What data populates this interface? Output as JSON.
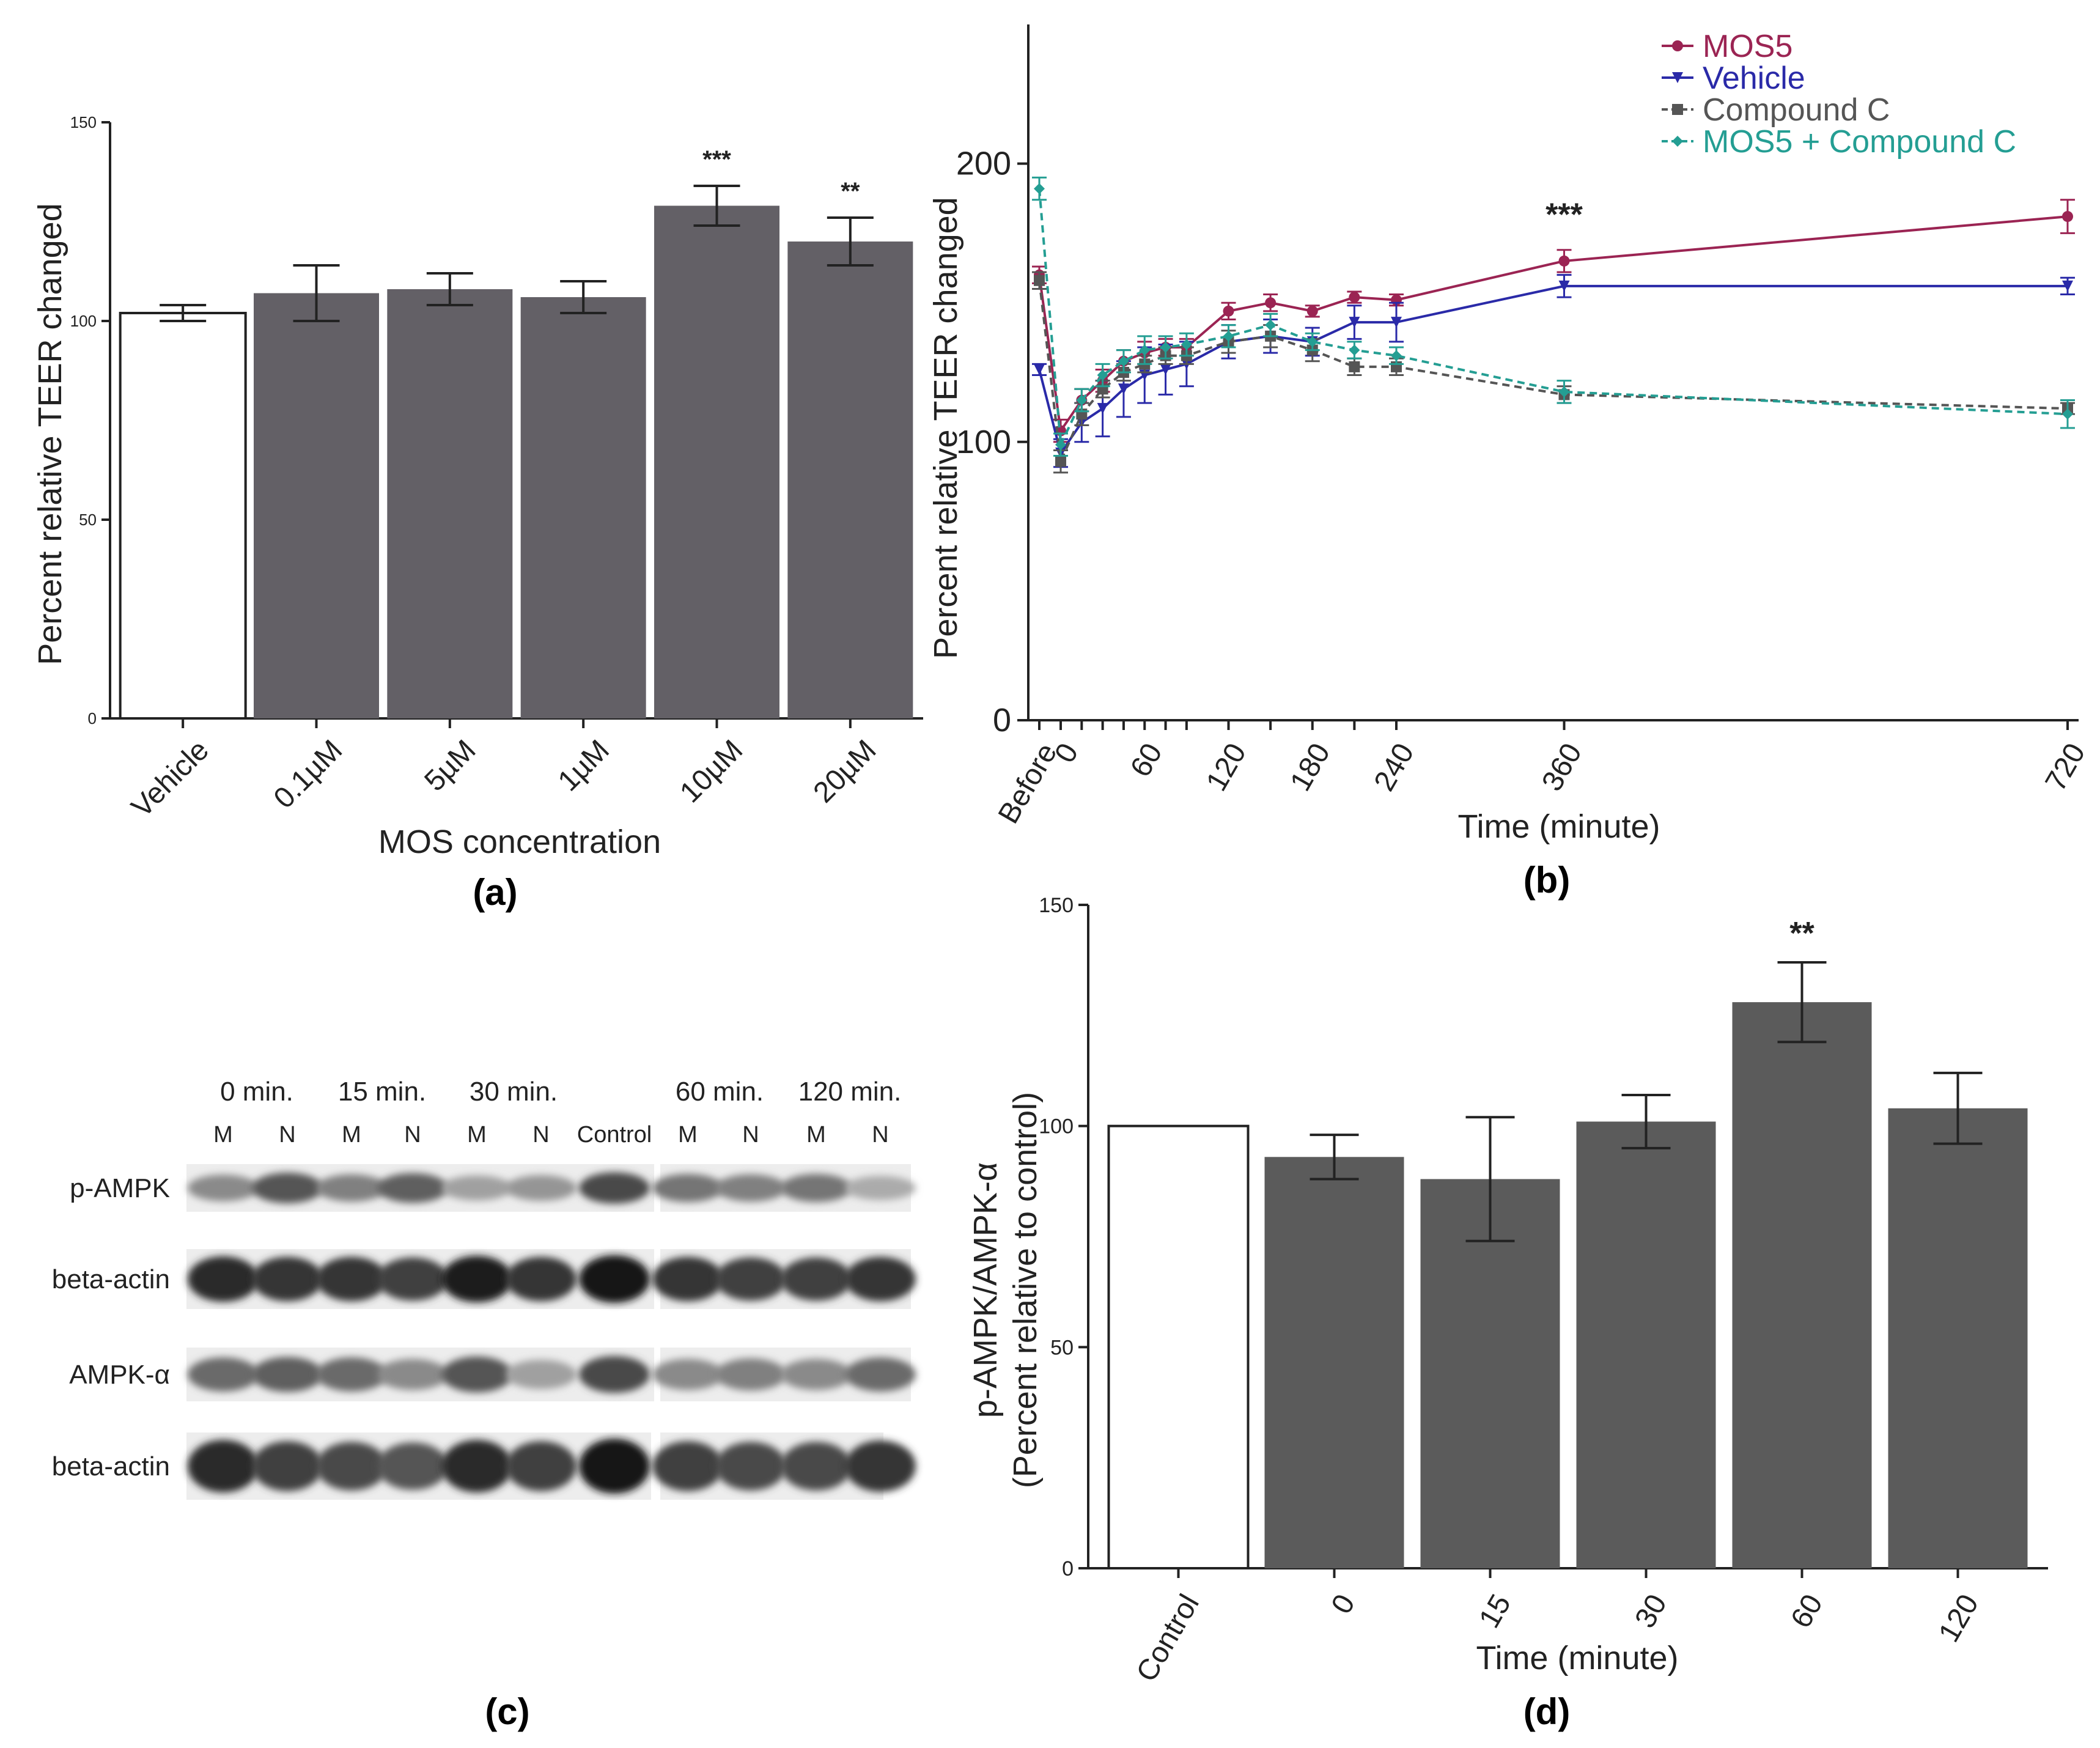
{
  "panel_labels": {
    "a": "(a)",
    "b": "(b)",
    "c": "(c)",
    "d": "(d)"
  },
  "chart_data": [
    {
      "id": "a",
      "type": "bar",
      "title": "",
      "xlabel": "MOS concentration",
      "ylabel": "Percent relative TEER changed",
      "ylim": [
        0,
        150
      ],
      "yticks": [
        0,
        50,
        100,
        150
      ],
      "categories": [
        "Vehicle",
        "0.1µM",
        "5µM",
        "1µM",
        "10µM",
        "20µM"
      ],
      "values": [
        102,
        107,
        108,
        106,
        129,
        120
      ],
      "errors": [
        2,
        7,
        4,
        4,
        5,
        6
      ],
      "bar_colors": [
        "#ffffff",
        "#636066",
        "#636066",
        "#636066",
        "#636066",
        "#636066"
      ],
      "significance": [
        "",
        "",
        "",
        "",
        "***",
        "**"
      ]
    },
    {
      "id": "b",
      "type": "line",
      "title": "",
      "xlabel": "Time (minute)",
      "ylabel": "Percent relative TEER changed",
      "ylim": [
        0,
        250
      ],
      "yticks": [
        0,
        100,
        200
      ],
      "xtick_labels": [
        "Before",
        "0",
        "60",
        "120",
        "180",
        "240",
        "360",
        "720"
      ],
      "x": [
        "Before",
        "0",
        "15",
        "30",
        "45",
        "60",
        "75",
        "90",
        "120",
        "150",
        "180",
        "210",
        "240",
        "360",
        "720"
      ],
      "series": [
        {
          "name": "MOS5",
          "color": "#9b2453",
          "marker": "circle",
          "dashed": false,
          "values": [
            160,
            104,
            115,
            122,
            129,
            132,
            134,
            134,
            147,
            150,
            147,
            152,
            151,
            165,
            181
          ],
          "errors": [
            3,
            4,
            4,
            4,
            4,
            4,
            3,
            3,
            3,
            3,
            2,
            2,
            2,
            4,
            6
          ]
        },
        {
          "name": "Vehicle",
          "color": "#2a2aa8",
          "marker": "triangle-down",
          "dashed": false,
          "values": [
            126,
            96,
            107,
            112,
            119,
            124,
            126,
            128,
            136,
            138,
            136,
            143,
            143,
            156,
            156
          ],
          "errors": [
            2,
            5,
            7,
            10,
            10,
            10,
            9,
            8,
            6,
            6,
            5,
            6,
            7,
            4,
            3
          ]
        },
        {
          "name": "Compound C",
          "color": "#555555",
          "marker": "square",
          "dashed": true,
          "values": [
            158,
            93,
            110,
            119,
            125,
            128,
            131,
            131,
            136,
            138,
            133,
            127,
            127,
            117,
            112
          ],
          "errors": [
            3,
            4,
            4,
            3,
            3,
            3,
            3,
            3,
            4,
            4,
            4,
            3,
            3,
            3,
            2
          ]
        },
        {
          "name": "MOS5 + Compound C",
          "color": "#249e93",
          "marker": "diamond",
          "dashed": true,
          "values": [
            191,
            99,
            115,
            124,
            129,
            133,
            134,
            135,
            138,
            142,
            136,
            133,
            131,
            118,
            110
          ],
          "errors": [
            4,
            4,
            4,
            4,
            4,
            5,
            4,
            4,
            4,
            4,
            3,
            3,
            3,
            4,
            5
          ]
        }
      ],
      "annotations": [
        {
          "text": "***",
          "at_x": "360"
        }
      ],
      "legend": "top-right"
    },
    {
      "id": "d",
      "type": "bar",
      "title": "",
      "xlabel": "Time (minute)",
      "ylabel_line1": "p-AMPK/AMPK-α",
      "ylabel_line2": "(Percent relative to control)",
      "ylim": [
        0,
        150
      ],
      "yticks": [
        0,
        50,
        100,
        150
      ],
      "categories": [
        "Control",
        "0",
        "15",
        "30",
        "60",
        "120"
      ],
      "values": [
        100,
        93,
        88,
        101,
        128,
        104
      ],
      "errors": [
        0,
        5,
        14,
        6,
        9,
        8
      ],
      "bar_colors": [
        "#ffffff",
        "#5b5b5b",
        "#5b5b5b",
        "#5b5b5b",
        "#5b5b5b",
        "#5b5b5b"
      ],
      "significance": [
        "",
        "",
        "",
        "",
        "**",
        ""
      ]
    }
  ],
  "western_blot": {
    "time_headers": [
      "0 min.",
      "15 min.",
      "30 min.",
      "60 min.",
      "120 min."
    ],
    "lanes": [
      "M",
      "N",
      "M",
      "N",
      "M",
      "N",
      "Control",
      "M",
      "N",
      "M",
      "N"
    ],
    "rows": [
      {
        "label": "p-AMPK",
        "intensity": [
          0.45,
          0.7,
          0.5,
          0.65,
          0.35,
          0.4,
          0.75,
          0.55,
          0.5,
          0.55,
          0.3
        ]
      },
      {
        "label": "beta-actin",
        "intensity": [
          0.9,
          0.85,
          0.85,
          0.8,
          0.95,
          0.85,
          1.0,
          0.85,
          0.8,
          0.8,
          0.85
        ]
      },
      {
        "label": "AMPK-α",
        "intensity": [
          0.6,
          0.65,
          0.6,
          0.45,
          0.7,
          0.35,
          0.75,
          0.45,
          0.5,
          0.45,
          0.6
        ]
      },
      {
        "label": "beta-actin",
        "intensity": [
          0.9,
          0.8,
          0.75,
          0.7,
          0.9,
          0.8,
          1.0,
          0.8,
          0.75,
          0.75,
          0.85
        ]
      }
    ]
  }
}
